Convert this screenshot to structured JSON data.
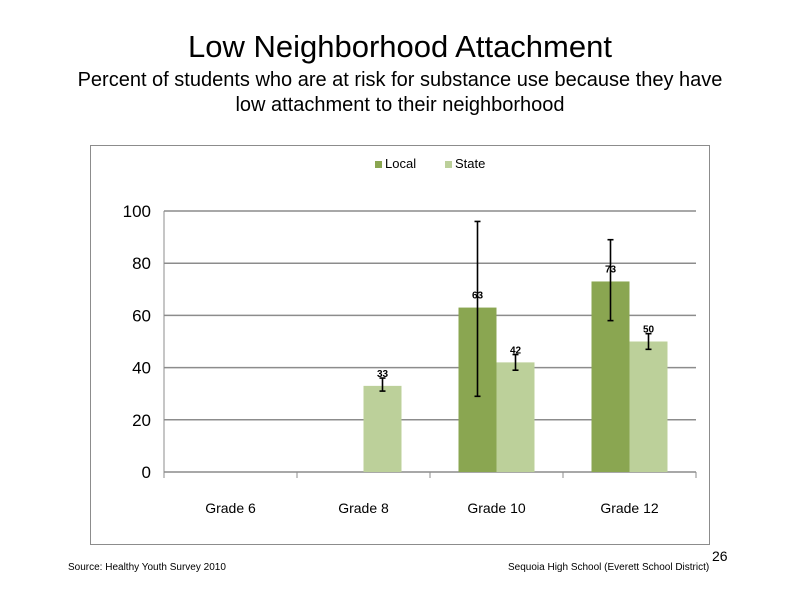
{
  "slide": {
    "title": "Low Neighborhood  Attachment",
    "subtitle": "Percent of students  who are at risk for substance  use because they have low attachment  to their neighborhood",
    "source": "Source: Healthy  Youth Survey 2010",
    "school": "Sequoia High  School (Everett School District)",
    "page_number": "26"
  },
  "colors": {
    "local": "#8aa651",
    "state": "#bcd09a",
    "grid": "#8c8c8c",
    "error_bar": "#000000"
  },
  "chart_data": {
    "type": "bar",
    "categories": [
      "Grade 6",
      "Grade 8",
      "Grade 10",
      "Grade 12"
    ],
    "series": [
      {
        "name": "Local",
        "values": [
          null,
          null,
          63,
          73
        ],
        "labels": [
          "",
          "",
          "63",
          "73"
        ],
        "error_low": [
          null,
          null,
          29,
          58
        ],
        "error_high": [
          null,
          null,
          96,
          89
        ]
      },
      {
        "name": "State",
        "values": [
          null,
          33,
          42,
          50
        ],
        "labels": [
          "",
          "33",
          "42",
          "50"
        ],
        "error_low": [
          null,
          31,
          39,
          47
        ],
        "error_high": [
          null,
          36,
          45,
          53
        ]
      }
    ],
    "ylim": [
      0,
      100
    ],
    "yticks": [
      "0",
      "20",
      "40",
      "60",
      "80",
      "100"
    ],
    "ytick_values": [
      0,
      20,
      40,
      60,
      80,
      100
    ],
    "legend_position": "top-center",
    "grid": true
  }
}
